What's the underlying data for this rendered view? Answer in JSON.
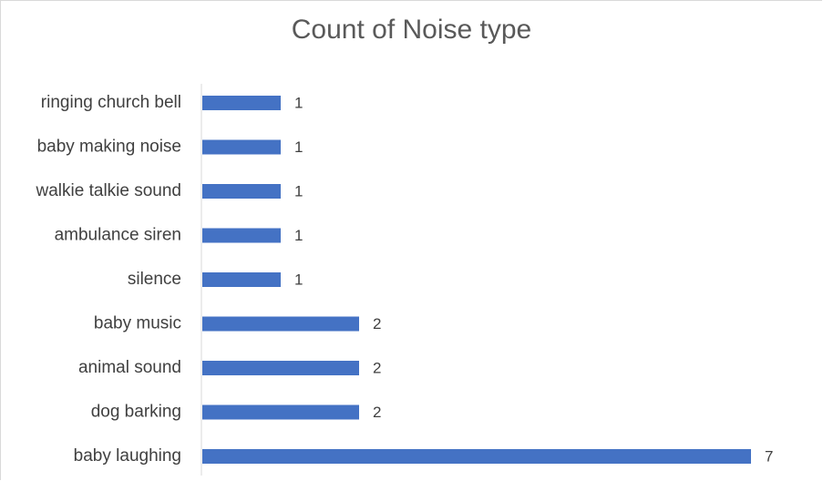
{
  "chart_data": {
    "type": "bar",
    "orientation": "horizontal",
    "title": "Count of Noise type",
    "categories": [
      "ringing church bell",
      "baby making noise",
      "walkie talkie sound",
      "ambulance siren",
      "silence",
      "baby music",
      "animal sound",
      "dog barking",
      "baby laughing"
    ],
    "values": [
      1,
      1,
      1,
      1,
      1,
      2,
      2,
      2,
      7
    ],
    "data_labels": [
      "1",
      "1",
      "1",
      "1",
      "1",
      "2",
      "2",
      "2",
      "7"
    ],
    "xlim": [
      0,
      7
    ],
    "grid": false,
    "legend": "none",
    "bar_color": "#4472c4"
  }
}
